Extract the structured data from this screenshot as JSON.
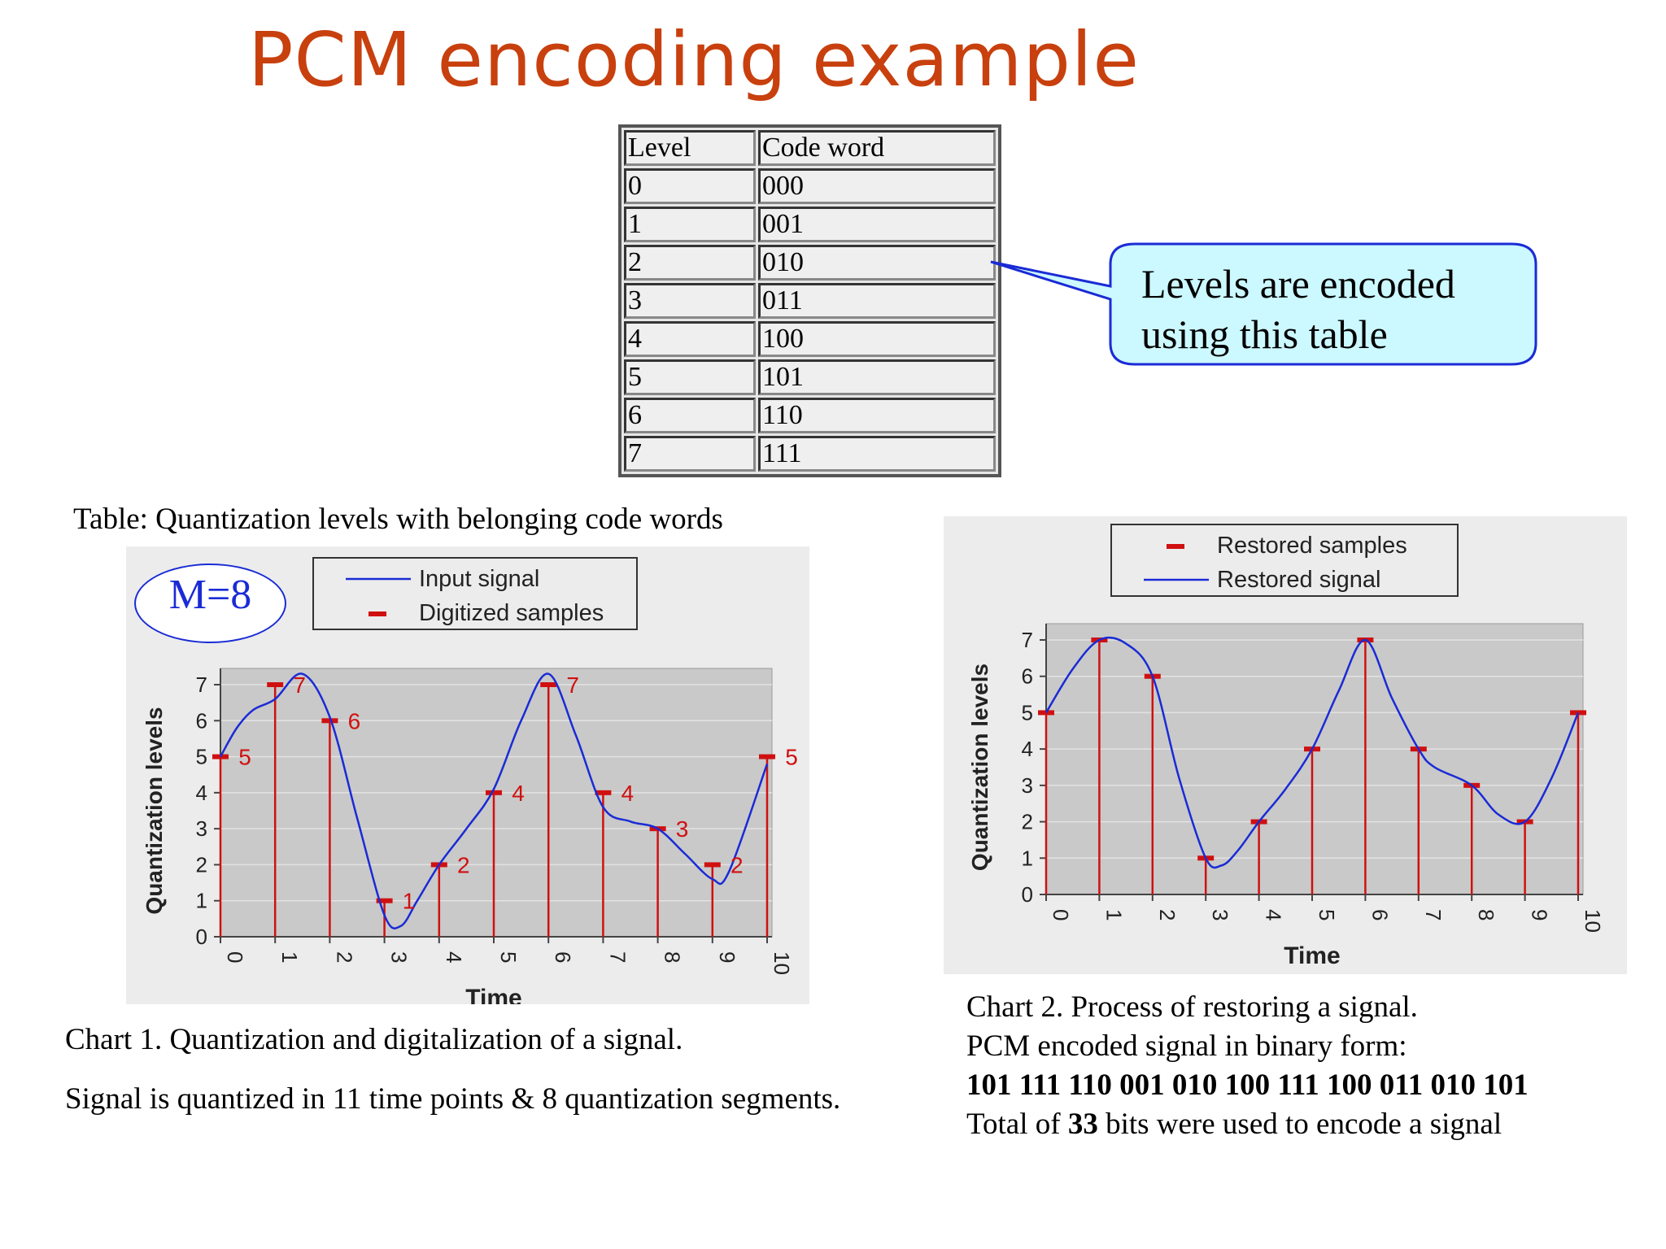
{
  "title": "PCM encoding example",
  "table": {
    "headers": [
      "Level",
      "Code word"
    ],
    "rows": [
      [
        "0",
        "000"
      ],
      [
        "1",
        "001"
      ],
      [
        "2",
        "010"
      ],
      [
        "3",
        "011"
      ],
      [
        "4",
        "100"
      ],
      [
        "5",
        "101"
      ],
      [
        "6",
        "110"
      ],
      [
        "7",
        "111"
      ]
    ]
  },
  "callout": {
    "line1": "Levels are encoded",
    "line2": "using this table"
  },
  "table_caption": "Table: Quantization levels with belonging code words",
  "m_label": "M=8",
  "chart1_caption": "Chart 1. Quantization and digitalization of a signal.",
  "chart1_note": "Signal is quantized in 11 time points & 8 quantization segments.",
  "chart2_caption": {
    "line1": "Chart 2. Process of restoring a signal.",
    "line2": "PCM encoded signal in binary form:",
    "binary": "101 111 110 001 010 100 111 100 011 010 101",
    "total_prefix": "Total of ",
    "total_bits": "33",
    "total_suffix": " bits were used to encode a signal"
  },
  "colors": {
    "title": "#c8400e",
    "signal": "#1a2bd6",
    "samples": "#d01010",
    "plot_bg": "#c9c9c9"
  },
  "chart_data": [
    {
      "type": "line",
      "xlabel": "Time",
      "ylabel": "Quantization levels",
      "x": [
        0,
        1,
        2,
        3,
        4,
        5,
        6,
        7,
        8,
        9,
        10
      ],
      "ylim": [
        0,
        7
      ],
      "legend_position": "top",
      "series": [
        {
          "name": "Input signal",
          "kind": "line",
          "points": [
            [
              0,
              5
            ],
            [
              0.3,
              5.8
            ],
            [
              0.6,
              6.3
            ],
            [
              1,
              6.6
            ],
            [
              1.5,
              7.3
            ],
            [
              2,
              6.1
            ],
            [
              2.5,
              3.3
            ],
            [
              3,
              0.6
            ],
            [
              3.3,
              0.3
            ],
            [
              3.6,
              1.0
            ],
            [
              4,
              2.0
            ],
            [
              4.5,
              3.0
            ],
            [
              5,
              4.1
            ],
            [
              5.5,
              6.0
            ],
            [
              6,
              7.3
            ],
            [
              6.5,
              5.6
            ],
            [
              7,
              3.6
            ],
            [
              7.5,
              3.2
            ],
            [
              8,
              3.0
            ],
            [
              8.5,
              2.3
            ],
            [
              9,
              1.6
            ],
            [
              9.3,
              1.8
            ],
            [
              10,
              4.8
            ]
          ]
        },
        {
          "name": "Digitized samples",
          "kind": "stems",
          "values": [
            5,
            7,
            6,
            1,
            2,
            4,
            7,
            4,
            3,
            2,
            5
          ]
        }
      ],
      "data_labels": [
        "5",
        "7",
        "6",
        "1",
        "2",
        "4",
        "7",
        "4",
        "3",
        "2",
        "5"
      ]
    },
    {
      "type": "line",
      "xlabel": "Time",
      "ylabel": "Quantization levels",
      "x": [
        0,
        1,
        2,
        3,
        4,
        5,
        6,
        7,
        8,
        9,
        10
      ],
      "ylim": [
        0,
        7
      ],
      "legend_position": "top",
      "series": [
        {
          "name": "Restored samples",
          "kind": "stems",
          "values": [
            5,
            7,
            6,
            1,
            2,
            4,
            7,
            4,
            3,
            2,
            5
          ]
        },
        {
          "name": "Restored signal",
          "kind": "line",
          "points": [
            [
              0,
              5
            ],
            [
              0.5,
              6.2
            ],
            [
              1,
              7
            ],
            [
              1.5,
              6.9
            ],
            [
              2,
              6
            ],
            [
              2.5,
              3.2
            ],
            [
              3,
              1
            ],
            [
              3.3,
              0.8
            ],
            [
              3.6,
              1.2
            ],
            [
              4,
              2
            ],
            [
              4.5,
              2.9
            ],
            [
              5,
              4
            ],
            [
              5.5,
              5.6
            ],
            [
              6,
              7
            ],
            [
              6.5,
              5.4
            ],
            [
              7,
              4
            ],
            [
              7.3,
              3.5
            ],
            [
              8,
              3
            ],
            [
              8.5,
              2.2
            ],
            [
              9,
              2
            ],
            [
              9.5,
              3.2
            ],
            [
              10,
              5
            ]
          ]
        }
      ]
    }
  ]
}
